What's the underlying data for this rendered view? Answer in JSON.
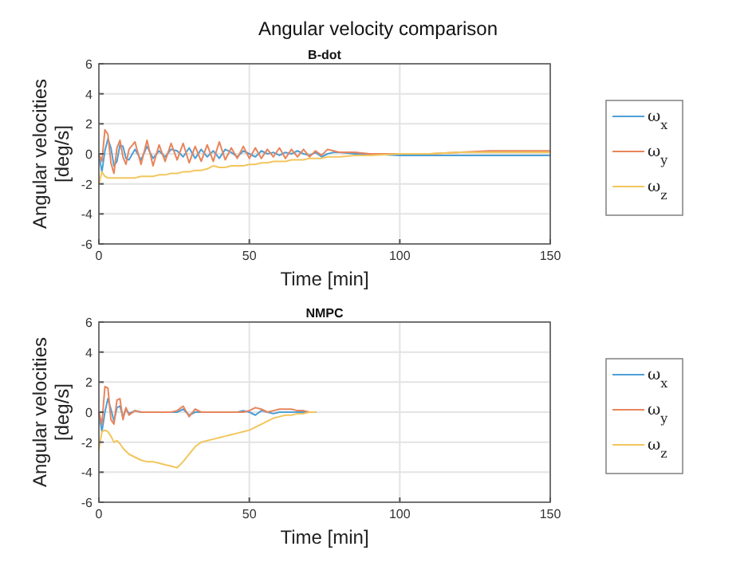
{
  "chart_data": [
    {
      "type": "line",
      "title": "Angular velocity comparison",
      "subtitle": "B-dot",
      "xlabel": "Time [min]",
      "ylabel": "Angular velocities [deg/s]",
      "x": [
        0,
        1,
        2,
        3,
        4,
        5,
        6,
        7,
        8,
        9,
        10,
        12,
        14,
        16,
        18,
        20,
        22,
        24,
        26,
        28,
        30,
        32,
        34,
        36,
        38,
        40,
        42,
        44,
        46,
        48,
        50,
        52,
        54,
        56,
        58,
        60,
        62,
        64,
        66,
        68,
        70,
        72,
        74,
        76,
        78,
        80,
        85,
        90,
        100,
        110,
        120,
        130,
        140,
        150
      ],
      "series": [
        {
          "name": "ω$_{x}$",
          "color": "#4d9fd6",
          "values": [
            0,
            -1.2,
            0.2,
            1.0,
            0.4,
            -0.8,
            -0.5,
            0.6,
            0.5,
            -0.3,
            -0.4,
            0.3,
            -0.4,
            0.5,
            -0.3,
            0.2,
            -0.2,
            0.3,
            0.2,
            -0.2,
            0.4,
            -0.3,
            0.3,
            -0.2,
            0.2,
            -0.3,
            0.3,
            0.1,
            -0.2,
            0.2,
            0,
            -0.2,
            0.2,
            0,
            0.1,
            -0.1,
            0.1,
            0,
            0.2,
            0,
            -0.1,
            0.1,
            -0.2,
            0,
            0.1,
            0.1,
            0,
            0,
            -0.1,
            -0.1,
            -0.1,
            -0.1,
            -0.1,
            -0.1
          ]
        },
        {
          "name": "ω$_{y}$",
          "color": "#e8845c",
          "values": [
            0,
            -0.5,
            1.6,
            1.3,
            -0.6,
            -1.3,
            0.4,
            0.9,
            -0.2,
            -0.7,
            0.3,
            0.8,
            -0.7,
            0.9,
            -0.8,
            0.6,
            -0.5,
            0.7,
            -0.4,
            0.7,
            -0.6,
            0.5,
            -0.5,
            0.6,
            -0.5,
            0.8,
            -0.4,
            0.4,
            -0.3,
            0.5,
            -0.3,
            0.4,
            -0.3,
            0.3,
            -0.2,
            0.4,
            -0.3,
            0.3,
            -0.2,
            0.3,
            -0.2,
            0.2,
            -0.1,
            0.3,
            0.2,
            0.1,
            0.1,
            0,
            0,
            0,
            0.1,
            0.2,
            0.2,
            0.2
          ]
        },
        {
          "name": "ω$_{z}$",
          "color": "#f2c65c",
          "values": [
            -2,
            -1.2,
            -1.5,
            -1.6,
            -1.6,
            -1.6,
            -1.6,
            -1.6,
            -1.6,
            -1.6,
            -1.6,
            -1.6,
            -1.5,
            -1.5,
            -1.5,
            -1.4,
            -1.4,
            -1.3,
            -1.3,
            -1.2,
            -1.2,
            -1.1,
            -1.1,
            -1.0,
            -0.8,
            -0.9,
            -0.9,
            -0.8,
            -0.8,
            -0.8,
            -0.7,
            -0.7,
            -0.6,
            -0.6,
            -0.5,
            -0.5,
            -0.5,
            -0.4,
            -0.4,
            -0.4,
            -0.3,
            -0.3,
            -0.3,
            -0.2,
            -0.2,
            -0.2,
            -0.1,
            -0.1,
            0,
            0,
            0.1,
            0.1,
            0.1,
            0.1
          ]
        }
      ],
      "xlim": [
        0,
        150
      ],
      "xticks": [
        0,
        50,
        100,
        150
      ],
      "ylim": [
        -6,
        6
      ],
      "yticks": [
        -6,
        -4,
        -2,
        0,
        2,
        4,
        6
      ],
      "grid": true,
      "legend": "right"
    },
    {
      "type": "line",
      "title": "NMPC",
      "xlabel": "Time [min]",
      "ylabel": "Angular velocities [deg/s]",
      "x": [
        0,
        1,
        2,
        3,
        4,
        5,
        6,
        7,
        8,
        9,
        10,
        12,
        14,
        16,
        18,
        20,
        22,
        24,
        26,
        28,
        30,
        32,
        34,
        36,
        38,
        40,
        42,
        44,
        46,
        48,
        50,
        52,
        54,
        56,
        58,
        60,
        62,
        64,
        66,
        68,
        70,
        72
      ],
      "series": [
        {
          "name": "ω$_{x}$",
          "color": "#4d9fd6",
          "values": [
            0,
            -1.3,
            0,
            0.9,
            0.2,
            -0.6,
            0.3,
            0.4,
            -0.3,
            0.2,
            -0.1,
            0.1,
            0,
            0,
            0,
            0,
            0,
            0,
            0,
            0.2,
            -0.2,
            0,
            0,
            0,
            0,
            0,
            0,
            0,
            0,
            0.1,
            0,
            -0.2,
            0.1,
            0,
            -0.1,
            0,
            0,
            0,
            0,
            0,
            0,
            0
          ]
        },
        {
          "name": "ω$_{y}$",
          "color": "#e8845c",
          "values": [
            0,
            -0.8,
            1.7,
            1.6,
            -0.5,
            -0.8,
            0.8,
            0.9,
            -0.5,
            0.3,
            -0.2,
            0.1,
            0,
            0,
            0,
            0,
            0,
            0,
            0.1,
            0.4,
            -0.3,
            0.2,
            0,
            0,
            0,
            0,
            0,
            0,
            0,
            0,
            0.1,
            0.3,
            0.2,
            0,
            0.1,
            0.2,
            0.2,
            0.2,
            0.1,
            0.1,
            0,
            0
          ]
        },
        {
          "name": "ω$_{z}$",
          "color": "#f2c65c",
          "values": [
            -2.5,
            -1.3,
            -1.2,
            -1.3,
            -1.6,
            -2.0,
            -1.9,
            -2.1,
            -2.4,
            -2.6,
            -2.8,
            -3.0,
            -3.2,
            -3.3,
            -3.3,
            -3.4,
            -3.5,
            -3.6,
            -3.7,
            -3.3,
            -2.8,
            -2.3,
            -2.0,
            -1.9,
            -1.8,
            -1.7,
            -1.6,
            -1.5,
            -1.4,
            -1.3,
            -1.2,
            -1.0,
            -0.8,
            -0.6,
            -0.4,
            -0.3,
            -0.2,
            -0.2,
            -0.1,
            -0.1,
            0,
            0
          ]
        }
      ],
      "xlim": [
        0,
        150
      ],
      "xticks": [
        0,
        50,
        100,
        150
      ],
      "ylim": [
        -6,
        6
      ],
      "yticks": [
        -6,
        -4,
        -2,
        0,
        2,
        4,
        6
      ],
      "grid": true,
      "legend": "right"
    }
  ]
}
